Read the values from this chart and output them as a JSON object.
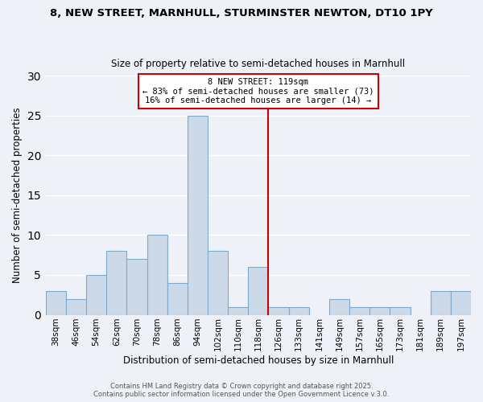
{
  "title1": "8, NEW STREET, MARNHULL, STURMINSTER NEWTON, DT10 1PY",
  "title2": "Size of property relative to semi-detached houses in Marnhull",
  "xlabel": "Distribution of semi-detached houses by size in Marnhull",
  "ylabel": "Number of semi-detached properties",
  "property_size": 119,
  "property_label": "8 NEW STREET: 119sqm",
  "pct_smaller": 83,
  "pct_larger": 16,
  "n_smaller": 73,
  "n_larger": 14,
  "bar_labels": [
    "38sqm",
    "46sqm",
    "54sqm",
    "62sqm",
    "70sqm",
    "78sqm",
    "86sqm",
    "94sqm",
    "102sqm",
    "110sqm",
    "118sqm",
    "126sqm",
    "133sqm",
    "141sqm",
    "149sqm",
    "157sqm",
    "165sqm",
    "173sqm",
    "181sqm",
    "189sqm",
    "197sqm"
  ],
  "bar_values": [
    3,
    2,
    5,
    8,
    7,
    10,
    4,
    25,
    8,
    1,
    6,
    1,
    1,
    0,
    2,
    1,
    1,
    1,
    0,
    3,
    3
  ],
  "bar_color": "#ccd9e8",
  "bar_edge_color": "#7fa8c9",
  "background_color": "#eef2f8",
  "grid_color": "#ffffff",
  "red_line_color": "#cc0000",
  "legend_box_color": "#cc0000",
  "footer_text": "Contains HM Land Registry data © Crown copyright and database right 2025.\nContains public sector information licensed under the Open Government Licence v.3.0.",
  "ylim": [
    0,
    30
  ],
  "yticks": [
    0,
    5,
    10,
    15,
    20,
    25,
    30
  ],
  "red_line_index": 10.5,
  "legend_line1": "8 NEW STREET: 119sqm",
  "legend_line2": "← 83% of semi-detached houses are smaller (73)",
  "legend_line3": "16% of semi-detached houses are larger (14) →"
}
